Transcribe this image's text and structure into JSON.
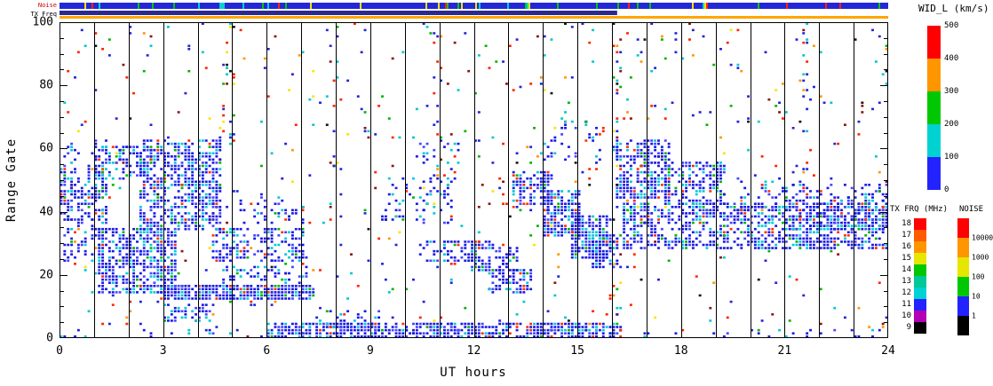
{
  "labels": {
    "xlabel": "UT hours",
    "ylabel": "Range Gate"
  },
  "chart_data": {
    "type": "heatmap",
    "title": "",
    "xlabel": "UT hours",
    "ylabel": "Range Gate",
    "xlim": [
      0,
      24
    ],
    "ylim": [
      0,
      100
    ],
    "xticks": [
      0,
      3,
      6,
      9,
      12,
      15,
      18,
      21,
      24
    ],
    "yticks": [
      0,
      20,
      40,
      60,
      80,
      100
    ],
    "grid": "vertical-hour-lines",
    "legend_position": "right",
    "seed": 20,
    "grid_cols": 240,
    "grid_rows": 100,
    "background_scatter": {
      "density": 0.028,
      "palette": "noise"
    },
    "palettes": {
      "backscatter": [
        [
          "#1919e6",
          0.6
        ],
        [
          "#4646ff",
          0.16
        ],
        [
          "#00c8dc",
          0.16
        ],
        [
          "#00b400",
          0.04
        ],
        [
          "#ff3200",
          0.04
        ]
      ],
      "noise": [
        [
          "#2323dc",
          0.3
        ],
        [
          "#ff2300",
          0.17
        ],
        [
          "#00c8c8",
          0.15
        ],
        [
          "#00b400",
          0.11
        ],
        [
          "#ff9600",
          0.08
        ],
        [
          "#ffe100",
          0.06
        ],
        [
          "#8c1414",
          0.07
        ],
        [
          "#141414",
          0.06
        ]
      ]
    },
    "features": [
      {
        "t": [
          0.05,
          1.3
        ],
        "g": [
          36,
          53
        ],
        "d": 0.5
      },
      {
        "t": [
          0.15,
          1.1
        ],
        "g": [
          24,
          38
        ],
        "d": 0.3
      },
      {
        "t": [
          0.1,
          1.9
        ],
        "g": [
          54,
          62
        ],
        "d": 0.16
      },
      {
        "t": [
          1.0,
          2.6
        ],
        "g": [
          50,
          60
        ],
        "d": 0.4
      },
      {
        "t": [
          1.2,
          3.3
        ],
        "g": [
          14,
          34
        ],
        "d": 0.66
      },
      {
        "t": [
          2.4,
          4.6
        ],
        "g": [
          34,
          62
        ],
        "d": 0.6
      },
      {
        "t": [
          2.9,
          7.3
        ],
        "g": [
          12,
          16
        ],
        "d": 0.85
      },
      {
        "t": [
          3.0,
          4.2
        ],
        "g": [
          5,
          10
        ],
        "d": 0.45
      },
      {
        "t": [
          4.4,
          7.0
        ],
        "g": [
          24,
          34
        ],
        "d": 0.45
      },
      {
        "t": [
          4.8,
          7.2
        ],
        "g": [
          16,
          22
        ],
        "d": 0.25
      },
      {
        "t": [
          5.2,
          7.0
        ],
        "g": [
          36,
          44
        ],
        "d": 0.2
      },
      {
        "t": [
          6.0,
          16.2
        ],
        "g": [
          0,
          4
        ],
        "d": 0.7
      },
      {
        "t": [
          7.5,
          9.2
        ],
        "g": [
          0,
          8
        ],
        "d": 0.22
      },
      {
        "t": [
          9.3,
          11.3
        ],
        "g": [
          36,
          50
        ],
        "d": 0.22
      },
      {
        "t": [
          10.2,
          11.6
        ],
        "g": [
          52,
          62
        ],
        "d": 0.13
      },
      {
        "t": [
          10.4,
          12.1
        ],
        "g": [
          24,
          30
        ],
        "d": 0.4
      },
      {
        "t": [
          11.9,
          13.2
        ],
        "g": [
          21,
          30
        ],
        "d": 0.55
      },
      {
        "t": [
          12.4,
          13.6
        ],
        "g": [
          14,
          21
        ],
        "d": 0.5
      },
      {
        "t": [
          13.2,
          14.2
        ],
        "g": [
          40,
          52
        ],
        "d": 0.62
      },
      {
        "t": [
          14.0,
          15.0
        ],
        "g": [
          32,
          46
        ],
        "d": 0.7
      },
      {
        "t": [
          14.8,
          15.8
        ],
        "g": [
          25,
          38
        ],
        "d": 0.7
      },
      {
        "t": [
          15.4,
          16.1
        ],
        "g": [
          22,
          32
        ],
        "d": 0.55
      },
      {
        "t": [
          13.8,
          15.6
        ],
        "g": [
          55,
          68
        ],
        "d": 0.14
      },
      {
        "t": [
          16.1,
          17.6
        ],
        "g": [
          44,
          62
        ],
        "d": 0.62
      },
      {
        "t": [
          16.3,
          24.0
        ],
        "g": [
          28,
          42
        ],
        "d": 0.55
      },
      {
        "t": [
          17.5,
          19.2
        ],
        "g": [
          42,
          55
        ],
        "d": 0.45
      },
      {
        "t": [
          19.5,
          21.0
        ],
        "g": [
          40,
          50
        ],
        "d": 0.25
      },
      {
        "t": [
          21.0,
          24.0
        ],
        "g": [
          34,
          48
        ],
        "d": 0.35
      },
      {
        "t": [
          0.0,
          24.0
        ],
        "g": [
          0,
          2
        ],
        "d": 0.1
      },
      {
        "t": [
          4.7,
          4.9
        ],
        "g": [
          60,
          100
        ],
        "d": 0.12,
        "p": "noise"
      },
      {
        "t": [
          10.8,
          11.0
        ],
        "g": [
          40,
          100
        ],
        "d": 0.1,
        "p": "noise"
      },
      {
        "t": [
          16.0,
          16.2
        ],
        "g": [
          0,
          100
        ],
        "d": 0.12,
        "p": "noise"
      },
      {
        "t": [
          21.4,
          21.6
        ],
        "g": [
          30,
          100
        ],
        "d": 0.1,
        "p": "noise"
      },
      {
        "t": [
          7.9,
          8.1
        ],
        "g": [
          50,
          100
        ],
        "d": 0.08,
        "p": "noise"
      }
    ],
    "strips": {
      "noise_label": "Noise",
      "tx_label": "TX Freq",
      "noise": {
        "base": "#2328d7",
        "speck_prob": 0.12,
        "speck_colors": [
          "#00c800",
          "#ff2300",
          "#00d2d2",
          "#ffe100"
        ]
      },
      "tx": {
        "primary_color": "#2a2a8f",
        "primary_t": [
          0,
          16.15
        ],
        "secondary_color": "#ffa500",
        "secondary_t": [
          0,
          24
        ]
      }
    },
    "colorbars": {
      "wid": {
        "title": "WID_L (km/s)",
        "ticks": [
          500,
          400,
          300,
          200,
          100,
          0
        ],
        "colors": [
          "#ff0000",
          "#ff9600",
          "#00c800",
          "#00d2d2",
          "#2323ff"
        ]
      },
      "txfrq": {
        "title": "TX FRQ (MHz)",
        "ticks": [
          18,
          17,
          16,
          15,
          14,
          13,
          12,
          11,
          10,
          9
        ],
        "colors": [
          "#ff0000",
          "#ff5a00",
          "#ff9600",
          "#e6e600",
          "#00c800",
          "#00c896",
          "#00d2d2",
          "#2323ff",
          "#b400b4",
          "#000000"
        ]
      },
      "noise": {
        "title": "NOISE",
        "ticks": [
          "10000",
          "1000",
          "100",
          "10",
          "1"
        ],
        "colors": [
          "#ff0000",
          "#ff9600",
          "#e6e600",
          "#00c800",
          "#2323ff",
          "#000000"
        ]
      }
    }
  }
}
